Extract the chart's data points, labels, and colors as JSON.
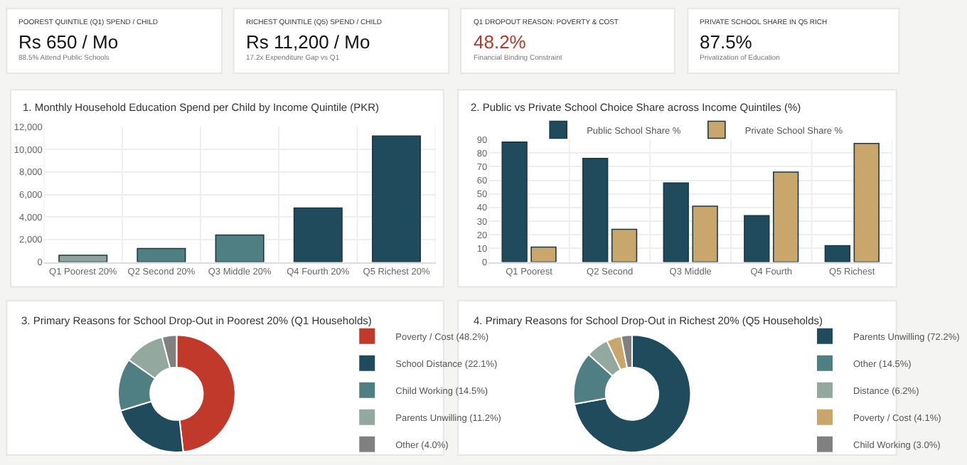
{
  "chart_data": [
    {
      "type": "other",
      "title": "POOREST QUINTILE (Q1) SPEND / CHILD",
      "annotations": [
        "Rs 650 / Mo",
        "88.5% Attend Public Schools"
      ],
      "color": "#111111"
    },
    {
      "type": "other",
      "title": "RICHEST QUINTILE (Q5) SPEND / CHILD",
      "annotations": [
        "Rs 11,200 / Mo",
        "17.2x Expenditure Gap vs Q1"
      ],
      "color": "#111111"
    },
    {
      "type": "other",
      "title": "Q1 DROPOUT REASON: POVERTY & COST",
      "annotations": [
        "48.2%",
        "Financial Binding Constraint"
      ],
      "color": "#b03a2e"
    },
    {
      "type": "other",
      "title": "PRIVATE SCHOOL SHARE IN Q5 RICH",
      "annotations": [
        "87.5%",
        "Privatization of Education"
      ],
      "color": "#111111"
    },
    {
      "type": "bar",
      "title": "1. Monthly Household Education Spend per Child by Income Quintile (PKR)",
      "categories": [
        "Q1 Poorest 20%",
        "Q2 Second 20%",
        "Q3 Middle 20%",
        "Q4 Fourth 20%",
        "Q5 Richest 20%"
      ],
      "values": [
        600,
        1200,
        2400,
        4800,
        11200
      ],
      "colors": [
        "#8fa39c",
        "#4f7f83",
        "#4f7f83",
        "#1f4b5c",
        "#1f4b5c"
      ],
      "ylim": [
        0,
        12000
      ],
      "yticks": [
        {
          "value": 0,
          "label": "0"
        },
        {
          "value": 2000,
          "label": "2,000"
        },
        {
          "value": 4000,
          "label": "4,000"
        },
        {
          "value": 6000,
          "label": "6,000"
        },
        {
          "value": 8000,
          "label": "8,000"
        },
        {
          "value": 10000,
          "label": "10,000"
        },
        {
          "value": 12000,
          "label": "12,000"
        }
      ],
      "grid": true
    },
    {
      "type": "bar",
      "title": "2. Public vs Private School Choice Share across Income Quintiles (%)",
      "categories": [
        "Q1 Poorest",
        "Q2 Second",
        "Q3 Middle",
        "Q4 Fourth",
        "Q5 Richest"
      ],
      "series": [
        {
          "name": "Public School Share %",
          "color": "#1f4b5c",
          "values": [
            88,
            76,
            58,
            34,
            12
          ]
        },
        {
          "name": "Private School Share %",
          "color": "#c9a66b",
          "values": [
            11,
            24,
            41,
            66,
            87
          ]
        }
      ],
      "ylim": [
        0,
        90
      ],
      "yticks": [
        0,
        10,
        20,
        30,
        40,
        50,
        60,
        70,
        80,
        90
      ],
      "grid": true,
      "legend": "top"
    },
    {
      "type": "donut",
      "title": "3. Primary Reasons for School Drop-Out in Poorest 20% (Q1 Households)",
      "categories": [
        "Poverty / Cost (48.2%)",
        "School Distance (22.1%)",
        "Child Working (14.5%)",
        "Parents Unwilling (11.2%)",
        "Other (4.0%)"
      ],
      "values": [
        48.2,
        22.1,
        14.5,
        11.2,
        4.0
      ],
      "colors": [
        "#c0392b",
        "#1f4b5c",
        "#4f7f83",
        "#93a89f",
        "#808080"
      ],
      "legend": "right"
    },
    {
      "type": "donut",
      "title": "4. Primary Reasons for School Drop-Out in Richest 20% (Q5 Households)",
      "categories": [
        "Parents Unwilling (72.2%)",
        "Other (14.5%)",
        "Distance (6.2%)",
        "Poverty / Cost (4.1%)",
        "Child Working (3.0%)"
      ],
      "values": [
        72.2,
        14.5,
        6.2,
        4.1,
        3.0
      ],
      "colors": [
        "#1f4b5c",
        "#4f7f83",
        "#93a89f",
        "#c9a66b",
        "#808080"
      ],
      "legend": "right"
    }
  ]
}
